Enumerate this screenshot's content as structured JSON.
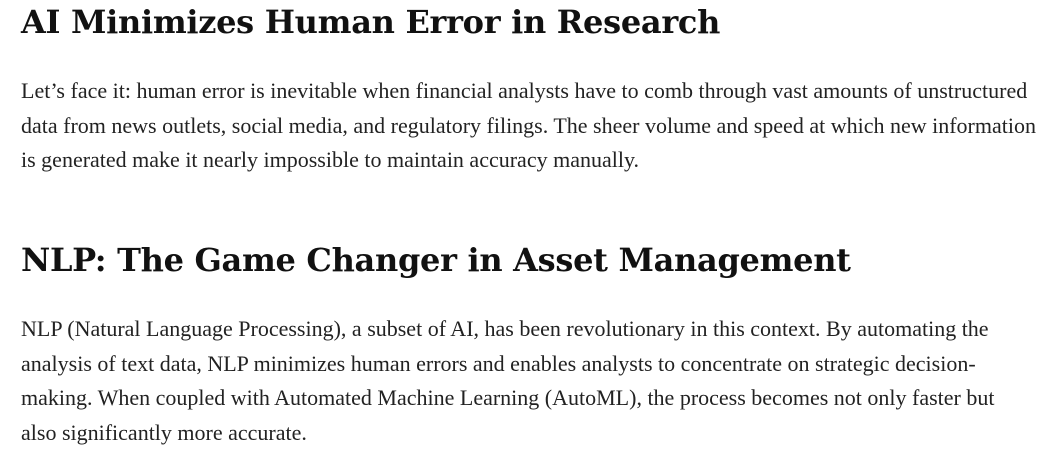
{
  "sections": [
    {
      "heading": "AI Minimizes Human Error in Research",
      "paragraph": "Let’s face it: human error is inevitable when financial analysts have to comb through vast amounts of unstructured data from news outlets, social media, and regulatory filings. The sheer volume and speed at which new information is generated make it nearly impossible to maintain accuracy manually."
    },
    {
      "heading": "NLP: The Game Changer in Asset Management",
      "paragraph": "NLP (Natural Language Processing), a subset of AI, has been revolutionary in this context. By automating the analysis of text data, NLP minimizes human errors and enables analysts to concentrate on strategic decision-making. When coupled with Automated Machine Learning (AutoML), the process becomes not only faster but also significantly more accurate."
    }
  ]
}
